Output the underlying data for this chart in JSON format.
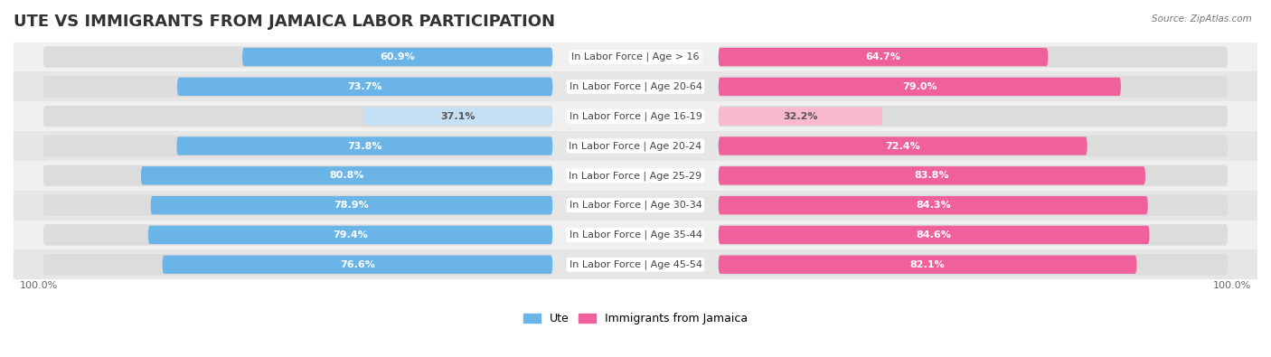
{
  "title": "UTE VS IMMIGRANTS FROM JAMAICA LABOR PARTICIPATION",
  "source": "Source: ZipAtlas.com",
  "categories": [
    "In Labor Force | Age > 16",
    "In Labor Force | Age 20-64",
    "In Labor Force | Age 16-19",
    "In Labor Force | Age 20-24",
    "In Labor Force | Age 25-29",
    "In Labor Force | Age 30-34",
    "In Labor Force | Age 35-44",
    "In Labor Force | Age 45-54"
  ],
  "ute_values": [
    60.9,
    73.7,
    37.1,
    73.8,
    80.8,
    78.9,
    79.4,
    76.6
  ],
  "jamaica_values": [
    64.7,
    79.0,
    32.2,
    72.4,
    83.8,
    84.3,
    84.6,
    82.1
  ],
  "ute_color": "#6ab4e8",
  "ute_color_light": "#c5dff5",
  "jamaica_color": "#f0609a",
  "jamaica_color_light": "#f8b8d0",
  "bg_light": "#f0f0f0",
  "bg_dark": "#e6e6e6",
  "bar_bg_color": "#dcdcdc",
  "title_fontsize": 13,
  "label_fontsize": 8,
  "value_fontsize": 8,
  "legend_fontsize": 9,
  "axis_label_fontsize": 8,
  "max_value": 100.0,
  "bar_height": 0.62,
  "background_color": "#ffffff"
}
